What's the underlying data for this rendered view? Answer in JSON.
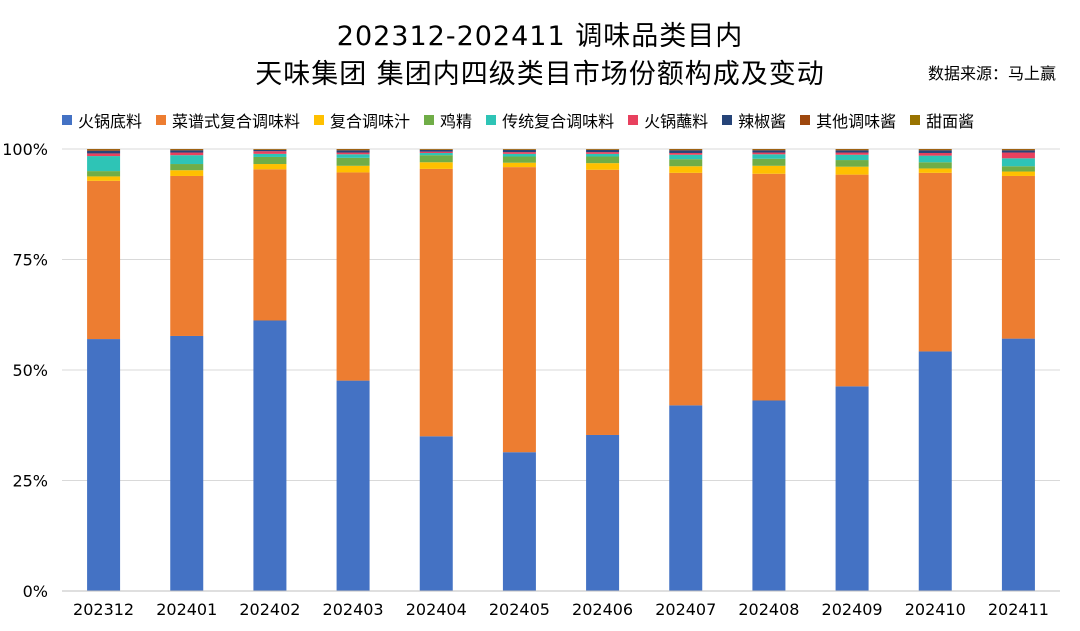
{
  "header": {
    "title_line1": "202312-202411 调味品类目内",
    "title_line2": "天味集团 集团内四级类目市场份额构成及变动",
    "source": "数据来源：马上赢"
  },
  "chart_data": {
    "type": "bar",
    "stacked": true,
    "categories": [
      "202312",
      "202401",
      "202402",
      "202403",
      "202404",
      "202405",
      "202406",
      "202407",
      "202408",
      "202409",
      "202410",
      "202411"
    ],
    "y_ticks": [
      "0%",
      "25%",
      "50%",
      "75%",
      "100%"
    ],
    "ylim": [
      0,
      100
    ],
    "grid": true,
    "legend_position": "top",
    "series": [
      {
        "name": "火锅底料",
        "color": "#4472C4",
        "values": [
          57.0,
          57.7,
          61.2,
          47.6,
          35.0,
          31.4,
          35.3,
          42.0,
          43.1,
          46.3,
          54.2,
          57.1
        ]
      },
      {
        "name": "菜谱式复合调味料",
        "color": "#ED7D31",
        "values": [
          35.8,
          36.2,
          34.2,
          47.1,
          60.5,
          64.5,
          60.0,
          52.6,
          51.3,
          47.9,
          40.4,
          36.8
        ]
      },
      {
        "name": "复合调味汁",
        "color": "#FFC000",
        "values": [
          1.0,
          1.3,
          1.2,
          1.5,
          1.5,
          1.0,
          1.5,
          1.5,
          1.8,
          1.8,
          1.0,
          1.0
        ]
      },
      {
        "name": "鸡精",
        "color": "#70AD47",
        "values": [
          1.2,
          1.4,
          1.6,
          1.8,
          1.6,
          1.4,
          1.5,
          1.6,
          1.6,
          1.5,
          1.4,
          1.2
        ]
      },
      {
        "name": "传统复合调味料",
        "color": "#2EC4B6",
        "values": [
          3.4,
          2.0,
          0.7,
          0.8,
          0.5,
          0.6,
          0.6,
          1.0,
          1.0,
          1.2,
          1.5,
          1.8
        ]
      },
      {
        "name": "火锅蘸料",
        "color": "#E8415E",
        "values": [
          0.6,
          0.6,
          0.6,
          0.4,
          0.3,
          0.4,
          0.4,
          0.4,
          0.4,
          0.5,
          0.6,
          1.3
        ]
      },
      {
        "name": "辣椒酱",
        "color": "#264478",
        "values": [
          0.6,
          0.5,
          0.3,
          0.5,
          0.4,
          0.5,
          0.5,
          0.6,
          0.5,
          0.5,
          0.6,
          0.5
        ]
      },
      {
        "name": "其他调味酱",
        "color": "#9E480E",
        "values": [
          0.3,
          0.2,
          0.1,
          0.2,
          0.1,
          0.1,
          0.1,
          0.2,
          0.2,
          0.2,
          0.2,
          0.2
        ]
      },
      {
        "name": "甜面酱",
        "color": "#997300",
        "values": [
          0.1,
          0.1,
          0.1,
          0.1,
          0.1,
          0.1,
          0.1,
          0.1,
          0.1,
          0.1,
          0.1,
          0.1
        ]
      }
    ]
  }
}
